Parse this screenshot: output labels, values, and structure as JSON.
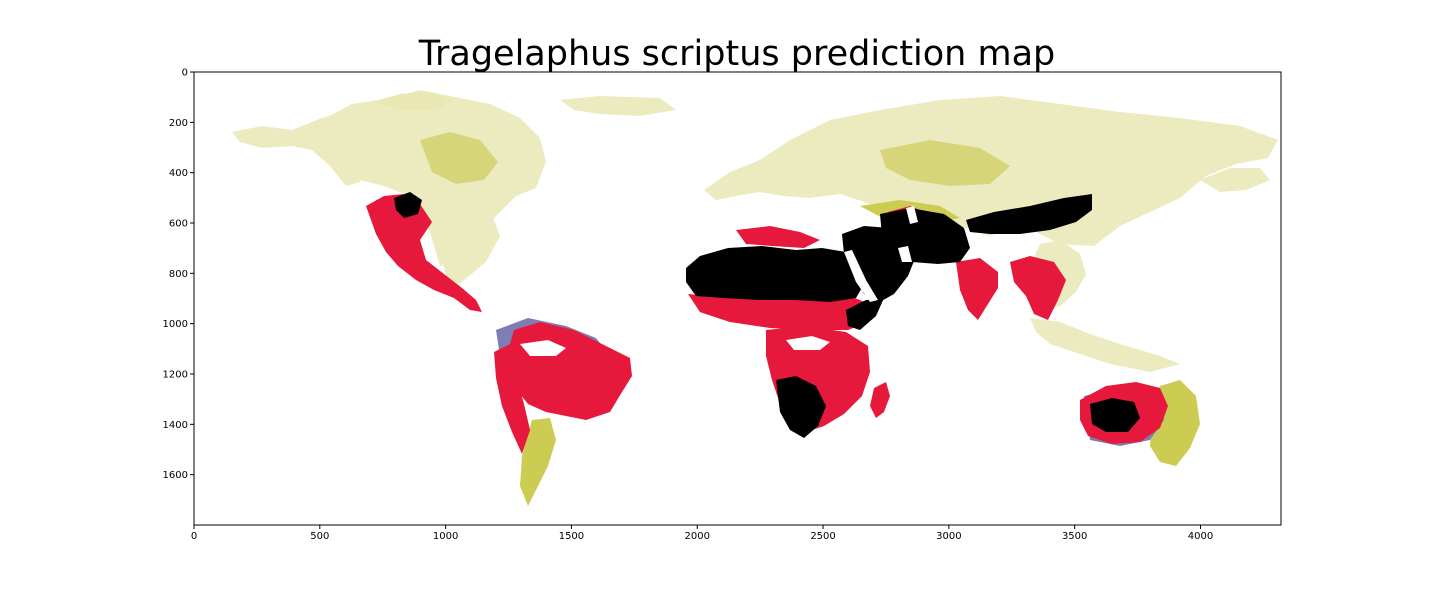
{
  "figure": {
    "title": "Tragelaphus scriptus prediction map"
  },
  "axes": {
    "x_ticks": [
      "0",
      "500",
      "1000",
      "1500",
      "2000",
      "2500",
      "3000",
      "3500",
      "4000"
    ],
    "y_ticks": [
      "0",
      "200",
      "400",
      "600",
      "800",
      "1000",
      "1200",
      "1400",
      "1600"
    ],
    "x_range": [
      0,
      4320
    ],
    "y_range": [
      1800,
      0
    ]
  },
  "colors": {
    "background": "#ffffff",
    "axes_frame": "#000000",
    "very_low": "#ecebbf",
    "low": "#cccc52",
    "medium": "#7d7eb2",
    "high": "#e6183c",
    "very_high": "#000000"
  },
  "map": {
    "kind": "raster prediction map",
    "projection": "equirectangular pixel grid",
    "legend": "none"
  }
}
